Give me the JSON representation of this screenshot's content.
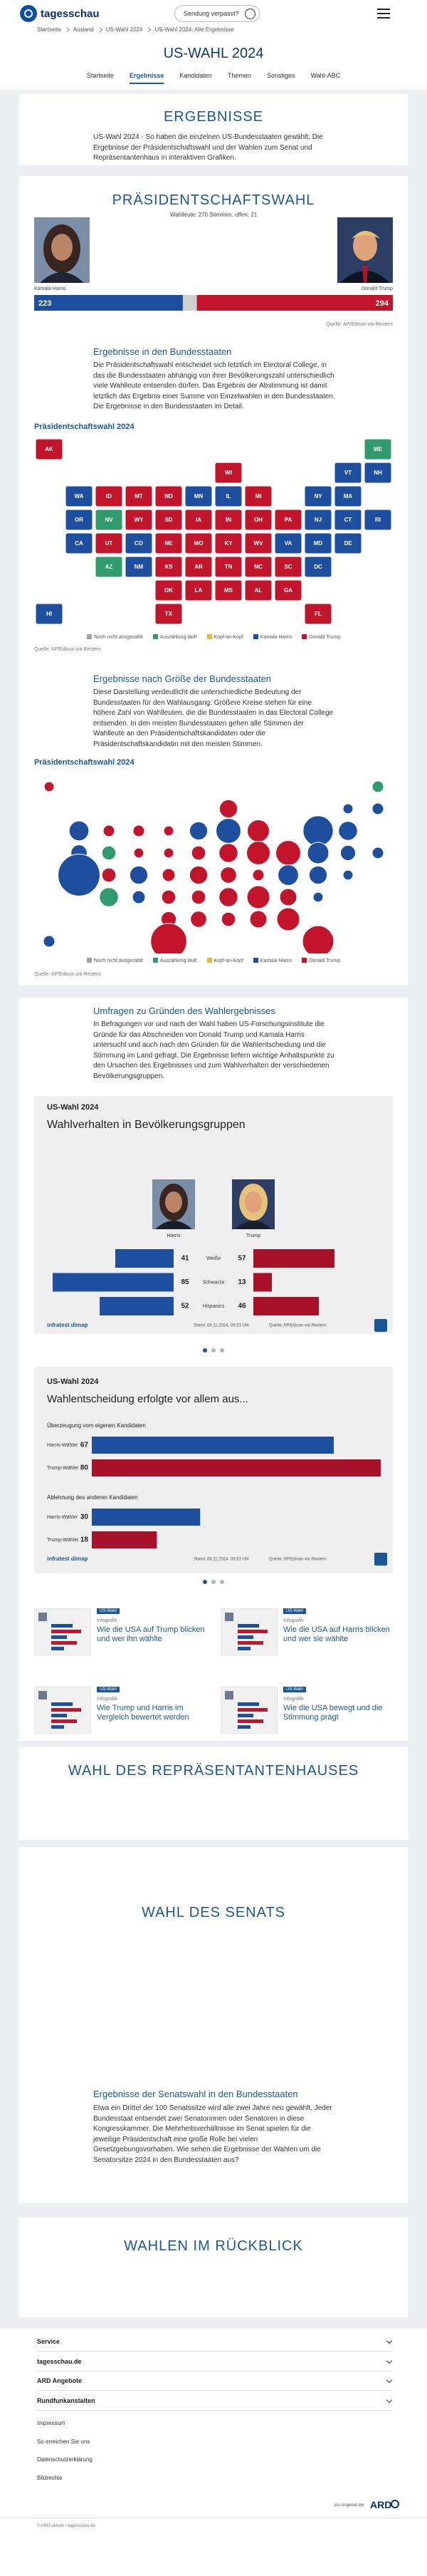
{
  "header": {
    "logo": "tagesschau",
    "button": "Sendung verpasst?"
  },
  "breadcrumb": [
    "Startseite",
    "Ausland",
    "US-Wahl 2024",
    "US-Wahl 2024: Alle Ergebnisse"
  ],
  "page_title": "US-WAHL 2024",
  "tabs": [
    "Startseite",
    "Ergebnisse",
    "Kandidaten",
    "Themen",
    "Sonstiges",
    "Wahl-ABC"
  ],
  "active_tab": 1,
  "intro": {
    "heading": "ERGEBNISSE",
    "text": "US-Wahl 2024 - So haben die einzelnen US-Bundesstaaten gewählt: Die Ergebnisse der Präsidentschaftswahl und der Wahlen zum Senat und Repräsentantenhaus in interaktiven Grafiken."
  },
  "president": {
    "heading": "PRÄSIDENTSCHAFTSWAHL",
    "subtitle": "Wahlleute: 270 Stimmen, offen: 21",
    "candidates": [
      {
        "name": "Kamala Harris",
        "color": "#1d4f9e",
        "votes": 223
      },
      {
        "name": "Donald Trump",
        "color": "#c2152b",
        "votes": 294
      }
    ],
    "xlim": [
      0,
      538
    ],
    "source": "Quelle: AP/Edison via Reuters",
    "states_section": {
      "heading": "Ergebnisse in den Bundesstaaten",
      "text": "Die Präsidentschaftswahl entscheidet sich letztlich im Electoral College, in das die Bundesstaaten abhängig von ihrer Bevölkerungszahl unterschiedlich viele Wahlleute entsenden dürfen. Das Ergebnis der Abstimmung ist damit letztlich das Ergebnis einer Summe von Einzelwahlen in den Bundesstaaten. Die Ergebnisse in den Bundesstaaten im Detail.",
      "map_title": "Präsidentschaftswahl 2024",
      "source": "Quelle: AP/Edison via Reuters"
    },
    "size_section": {
      "heading": "Ergebnisse nach Größe der Bundesstaaten",
      "text": "Diese Darstellung verdeutlicht die unterschiedliche Bedeutung der Bundesstaaten für den Wahlausgang: Größere Kreise stehen für eine höhere Zahl von Wahlleuten, die die Bundesstaaten in das Electoral College entsenden. In den meisten Bundesstaaten gehen alle Stimmen der Wahlleute an den Präsidentschaftskandidaten oder die Präsidentschaftskandidatin mit den meisten Stimmen.",
      "map_title": "Präsidentschaftswahl 2024",
      "source": "Quelle: AP/Edison via Reuters"
    },
    "legend": [
      {
        "name": "Noch nicht ausgezählt",
        "color": "#a3a3a3"
      },
      {
        "name": "Auszählung läuft",
        "color": "#2f9a6b"
      },
      {
        "name": "Kopf-an-Kopf",
        "color": "#e2b93b"
      },
      {
        "name": "Kamala Harris",
        "color": "#1d4f9e"
      },
      {
        "name": "Donald Trump",
        "color": "#c2152b"
      }
    ],
    "states": [
      {
        "abbr": "AK",
        "color": "#c2152b",
        "votes": 3
      },
      {
        "abbr": "ME",
        "color": "#2f9a6b",
        "votes": 4
      },
      {
        "abbr": "WI",
        "color": "#c2152b",
        "votes": 10
      },
      {
        "abbr": "VT",
        "color": "#1d4f9e",
        "votes": 3
      },
      {
        "abbr": "NH",
        "color": "#1d4f9e",
        "votes": 4
      },
      {
        "abbr": "WA",
        "color": "#1d4f9e",
        "votes": 12
      },
      {
        "abbr": "ID",
        "color": "#c2152b",
        "votes": 4
      },
      {
        "abbr": "MT",
        "color": "#c2152b",
        "votes": 4
      },
      {
        "abbr": "ND",
        "color": "#c2152b",
        "votes": 3
      },
      {
        "abbr": "MN",
        "color": "#1d4f9e",
        "votes": 10
      },
      {
        "abbr": "IL",
        "color": "#1d4f9e",
        "votes": 19
      },
      {
        "abbr": "MI",
        "color": "#c2152b",
        "votes": 15
      },
      {
        "abbr": "NY",
        "color": "#1d4f9e",
        "votes": 28
      },
      {
        "abbr": "MA",
        "color": "#1d4f9e",
        "votes": 11
      },
      {
        "abbr": "OR",
        "color": "#1d4f9e",
        "votes": 8
      },
      {
        "abbr": "NV",
        "color": "#2f9a6b",
        "votes": 6
      },
      {
        "abbr": "WY",
        "color": "#c2152b",
        "votes": 3
      },
      {
        "abbr": "SD",
        "color": "#c2152b",
        "votes": 3
      },
      {
        "abbr": "IA",
        "color": "#c2152b",
        "votes": 6
      },
      {
        "abbr": "IN",
        "color": "#c2152b",
        "votes": 11
      },
      {
        "abbr": "OH",
        "color": "#c2152b",
        "votes": 17
      },
      {
        "abbr": "PA",
        "color": "#c2152b",
        "votes": 19
      },
      {
        "abbr": "NJ",
        "color": "#1d4f9e",
        "votes": 14
      },
      {
        "abbr": "CT",
        "color": "#1d4f9e",
        "votes": 7
      },
      {
        "abbr": "RI",
        "color": "#1d4f9e",
        "votes": 4
      },
      {
        "abbr": "CA",
        "color": "#1d4f9e",
        "votes": 54
      },
      {
        "abbr": "UT",
        "color": "#c2152b",
        "votes": 6
      },
      {
        "abbr": "CO",
        "color": "#1d4f9e",
        "votes": 10
      },
      {
        "abbr": "NE",
        "color": "#c2152b",
        "votes": 5
      },
      {
        "abbr": "MO",
        "color": "#c2152b",
        "votes": 10
      },
      {
        "abbr": "KY",
        "color": "#c2152b",
        "votes": 8
      },
      {
        "abbr": "WV",
        "color": "#c2152b",
        "votes": 4
      },
      {
        "abbr": "VA",
        "color": "#1d4f9e",
        "votes": 13
      },
      {
        "abbr": "MD",
        "color": "#1d4f9e",
        "votes": 10
      },
      {
        "abbr": "DE",
        "color": "#1d4f9e",
        "votes": 3
      },
      {
        "abbr": "AZ",
        "color": "#2f9a6b",
        "votes": 11
      },
      {
        "abbr": "NM",
        "color": "#1d4f9e",
        "votes": 5
      },
      {
        "abbr": "KS",
        "color": "#c2152b",
        "votes": 6
      },
      {
        "abbr": "AR",
        "color": "#c2152b",
        "votes": 6
      },
      {
        "abbr": "TN",
        "color": "#c2152b",
        "votes": 11
      },
      {
        "abbr": "NC",
        "color": "#c2152b",
        "votes": 16
      },
      {
        "abbr": "SC",
        "color": "#c2152b",
        "votes": 9
      },
      {
        "abbr": "DC",
        "color": "#1d4f9e",
        "votes": 3
      },
      {
        "abbr": "OK",
        "color": "#c2152b",
        "votes": 7
      },
      {
        "abbr": "LA",
        "color": "#c2152b",
        "votes": 8
      },
      {
        "abbr": "MS",
        "color": "#c2152b",
        "votes": 6
      },
      {
        "abbr": "AL",
        "color": "#c2152b",
        "votes": 9
      },
      {
        "abbr": "GA",
        "color": "#c2152b",
        "votes": 16
      },
      {
        "abbr": "HI",
        "color": "#1d4f9e",
        "votes": 4
      },
      {
        "abbr": "TX",
        "color": "#c2152b",
        "votes": 40
      },
      {
        "abbr": "FL",
        "color": "#c2152b",
        "votes": 30
      }
    ]
  },
  "polls": {
    "heading": "Umfragen zu Gründen des Wahlergebnisses",
    "text": "In Befragungen vor und nach der Wahl haben US-Forschungsinstitute die Gründe für das Abschneiden von Donald Trump und Kamala Harris untersucht und auch nach den Gründen für die Wahlentscheidung und die Stimmung im Land gefragt. Die Ergebnisse liefern wichtige Anhaltspunkte zu den Ursachen des Ergebnisses und zum Wahlverhalten der verschiedenen Bevölkerungsgruppen.",
    "groups_chart": {
      "kicker": "US-Wahl 2024",
      "title": "Wahlverhalten in Bevölkerungsgruppen",
      "series": [
        {
          "name": "Harris",
          "color": "#1d4f9e"
        },
        {
          "name": "Trump",
          "color": "#a8112a"
        }
      ],
      "xlim": [
        0,
        90
      ],
      "rows": [
        {
          "label": "Weiße",
          "values": [
            41,
            57
          ]
        },
        {
          "label": "Schwarze",
          "values": [
            85,
            13
          ]
        },
        {
          "label": "Hispanics",
          "values": [
            52,
            46
          ]
        }
      ],
      "brand": "infratest dimap",
      "date": "Stand: 06.11.2024, 09:51 Uhr",
      "source": "Quelle: AP/Edison via Reuters"
    },
    "reason_chart": {
      "kicker": "US-Wahl 2024",
      "title": "Wahlentscheidung erfolgte vor allem aus...",
      "xlim": [
        0,
        80
      ],
      "groups": [
        {
          "label": "Überzeugung vom eigenen Kandidaten",
          "rows": [
            {
              "label": "Harris-Wähler",
              "value": 67,
              "color": "#1d4f9e"
            },
            {
              "label": "Trump-Wähler",
              "value": 80,
              "color": "#a8112a"
            }
          ]
        },
        {
          "label": "Ablehnung des anderen Kandidaten",
          "rows": [
            {
              "label": "Harris-Wähler",
              "value": 30,
              "color": "#1d4f9e"
            },
            {
              "label": "Trump-Wähler",
              "value": 18,
              "color": "#a8112a"
            }
          ]
        }
      ],
      "brand": "infratest dimap",
      "date": "Stand: 06.11.2024, 09:51 Uhr",
      "source": "Quelle: AP/Edison via Reuters"
    },
    "teasers": [
      {
        "badge": "US-Wahl",
        "kicker": "Infografik",
        "title": "Wie die USA auf Trump blicken und wer ihn wählte"
      },
      {
        "badge": "US-Wahl",
        "kicker": "Infografik",
        "title": "Wie die USA auf Harris blicken und wer sie wählte"
      },
      {
        "badge": "US-Wahl",
        "kicker": "Infografik",
        "title": "Wie Trump und Harris im Vergleich bewertet werden"
      },
      {
        "badge": "US-Wahl",
        "kicker": "Infografik",
        "title": "Wie die USA bewegt und die Stimmung prägt"
      }
    ]
  },
  "house": {
    "heading": "WAHL DES REPRÄSENTANTENHAUSES"
  },
  "senate": {
    "heading": "WAHL DES SENATS",
    "subheading": "Ergebnisse der Senatswahl in den Bundesstaaten",
    "text": "Etwa ein Drittel der 100 Senatssitze wird alle zwei Jahre neu gewählt. Jeder Bundesstaat entsendet zwei Senatorinnen oder Senatoren in diese Kongresskammer. Die Mehrheitsverhältnisse im Senat spielen für die jeweilige Präsidentschaft eine große Rolle bei vielen Gesetzgebungsvorhaben. Wie sehen die Ergebnisse der Wahlen um die Senatorsitze 2024 in den Bundesstaaten aus?"
  },
  "history": {
    "heading": "WAHLEN IM RÜCKBLICK"
  },
  "footer": {
    "accordions": [
      "Service",
      "tagesschau.de",
      "ARD Angebote",
      "Rundfunkanstalten"
    ],
    "links": [
      "Impressum",
      "So erreichen Sie uns",
      "Datenschutzerklärung",
      "Bildrechte"
    ],
    "copyright": "© ARD-aktuell / tagesschau.de",
    "ard_prefix": "ein Angebot der",
    "ard": "ARD"
  }
}
